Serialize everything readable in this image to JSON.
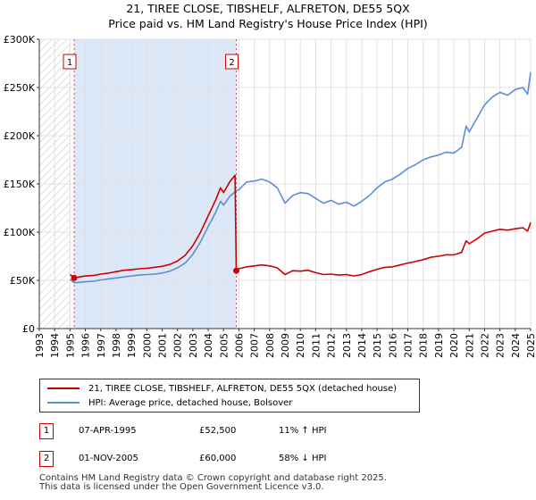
{
  "title_line1": "21, TIREE CLOSE, TIBSHELF, ALFRETON, DE55 5QX",
  "title_line2": "Price paid vs. HM Land Registry's House Price Index (HPI)",
  "chart_data": {
    "type": "line",
    "xlim": [
      1993,
      2025
    ],
    "ylim": [
      0,
      300000
    ],
    "x_ticks": [
      "1993",
      "1994",
      "1995",
      "1996",
      "1997",
      "1998",
      "1999",
      "2000",
      "2001",
      "2002",
      "2003",
      "2004",
      "2005",
      "2006",
      "2007",
      "2008",
      "2009",
      "2010",
      "2011",
      "2012",
      "2013",
      "2014",
      "2015",
      "2016",
      "2017",
      "2018",
      "2019",
      "2020",
      "2021",
      "2022",
      "2023",
      "2024",
      "2025"
    ],
    "y_ticks": [
      {
        "value": 0,
        "label": "£0"
      },
      {
        "value": 50000,
        "label": "£50K"
      },
      {
        "value": 100000,
        "label": "£100K"
      },
      {
        "value": 150000,
        "label": "£150K"
      },
      {
        "value": 200000,
        "label": "£200K"
      },
      {
        "value": 250000,
        "label": "£250K"
      },
      {
        "value": 300000,
        "label": "£300K"
      }
    ],
    "grid": true,
    "pre_data_hatch_until": 1995.0,
    "ownership_shading": [
      1995.27,
      2005.83
    ],
    "series": [
      {
        "name": "21, TIREE CLOSE, TIBSHELF, ALFRETON, DE55 5QX (detached house)",
        "color": "#cc0000",
        "points": [
          [
            1995.0,
            56000
          ],
          [
            1995.27,
            52500
          ],
          [
            1995.6,
            53500
          ],
          [
            1996.0,
            54500
          ],
          [
            1996.5,
            55000
          ],
          [
            1997.0,
            56500
          ],
          [
            1997.5,
            57500
          ],
          [
            1998.0,
            59000
          ],
          [
            1998.5,
            60500
          ],
          [
            1999.0,
            61000
          ],
          [
            1999.5,
            62000
          ],
          [
            2000.0,
            62500
          ],
          [
            2000.5,
            63500
          ],
          [
            2001.0,
            64500
          ],
          [
            2001.5,
            66500
          ],
          [
            2002.0,
            70000
          ],
          [
            2002.5,
            76000
          ],
          [
            2003.0,
            86000
          ],
          [
            2003.5,
            100000
          ],
          [
            2004.0,
            117000
          ],
          [
            2004.5,
            134000
          ],
          [
            2004.8,
            146000
          ],
          [
            2005.0,
            141000
          ],
          [
            2005.4,
            152000
          ],
          [
            2005.75,
            159000
          ],
          [
            2005.83,
            60000
          ],
          [
            2006.0,
            62000
          ],
          [
            2006.5,
            64000
          ],
          [
            2007.0,
            65000
          ],
          [
            2007.5,
            66000
          ],
          [
            2008.0,
            65000
          ],
          [
            2008.5,
            63000
          ],
          [
            2009.0,
            56000
          ],
          [
            2009.5,
            60000
          ],
          [
            2010.0,
            59500
          ],
          [
            2010.5,
            60500
          ],
          [
            2011.0,
            58000
          ],
          [
            2011.5,
            56000
          ],
          [
            2012.0,
            56500
          ],
          [
            2012.5,
            55500
          ],
          [
            2013.0,
            56000
          ],
          [
            2013.5,
            54500
          ],
          [
            2014.0,
            56000
          ],
          [
            2014.5,
            59000
          ],
          [
            2015.0,
            61500
          ],
          [
            2015.5,
            63500
          ],
          [
            2016.0,
            64000
          ],
          [
            2016.5,
            66000
          ],
          [
            2017.0,
            68000
          ],
          [
            2017.5,
            69500
          ],
          [
            2018.0,
            71500
          ],
          [
            2018.5,
            74000
          ],
          [
            2019.0,
            75000
          ],
          [
            2019.5,
            76500
          ],
          [
            2020.0,
            76500
          ],
          [
            2020.5,
            79000
          ],
          [
            2020.8,
            91000
          ],
          [
            2021.0,
            88000
          ],
          [
            2021.5,
            93000
          ],
          [
            2022.0,
            99000
          ],
          [
            2022.5,
            101000
          ],
          [
            2023.0,
            103000
          ],
          [
            2023.5,
            102000
          ],
          [
            2024.0,
            103500
          ],
          [
            2024.5,
            104500
          ],
          [
            2024.8,
            101000
          ],
          [
            2025.0,
            110000
          ]
        ]
      },
      {
        "name": "HPI: Average price, detached house, Bolsover",
        "color": "#5b8fd4",
        "points": [
          [
            1995.0,
            51000
          ],
          [
            1995.27,
            47500
          ],
          [
            1995.6,
            48000
          ],
          [
            1996.0,
            48500
          ],
          [
            1996.5,
            49000
          ],
          [
            1997.0,
            50500
          ],
          [
            1997.5,
            51500
          ],
          [
            1998.0,
            52500
          ],
          [
            1998.5,
            53500
          ],
          [
            1999.0,
            54500
          ],
          [
            1999.5,
            55500
          ],
          [
            2000.0,
            56000
          ],
          [
            2000.5,
            56500
          ],
          [
            2001.0,
            57500
          ],
          [
            2001.5,
            59500
          ],
          [
            2002.0,
            63000
          ],
          [
            2002.5,
            68000
          ],
          [
            2003.0,
            77000
          ],
          [
            2003.5,
            90000
          ],
          [
            2004.0,
            106000
          ],
          [
            2004.5,
            121000
          ],
          [
            2004.8,
            132000
          ],
          [
            2005.0,
            128000
          ],
          [
            2005.4,
            137000
          ],
          [
            2005.83,
            143000
          ],
          [
            2006.0,
            144000
          ],
          [
            2006.5,
            152000
          ],
          [
            2007.0,
            153000
          ],
          [
            2007.5,
            155000
          ],
          [
            2008.0,
            152000
          ],
          [
            2008.5,
            146000
          ],
          [
            2009.0,
            130000
          ],
          [
            2009.5,
            138000
          ],
          [
            2010.0,
            141000
          ],
          [
            2010.5,
            140000
          ],
          [
            2011.0,
            135000
          ],
          [
            2011.5,
            130000
          ],
          [
            2012.0,
            133000
          ],
          [
            2012.5,
            129000
          ],
          [
            2013.0,
            131000
          ],
          [
            2013.5,
            127000
          ],
          [
            2014.0,
            132000
          ],
          [
            2014.5,
            138000
          ],
          [
            2015.0,
            146000
          ],
          [
            2015.5,
            152000
          ],
          [
            2016.0,
            155000
          ],
          [
            2016.5,
            160000
          ],
          [
            2017.0,
            166000
          ],
          [
            2017.5,
            170000
          ],
          [
            2018.0,
            175000
          ],
          [
            2018.5,
            178000
          ],
          [
            2019.0,
            180000
          ],
          [
            2019.5,
            183000
          ],
          [
            2020.0,
            182000
          ],
          [
            2020.5,
            188000
          ],
          [
            2020.8,
            210000
          ],
          [
            2021.0,
            204000
          ],
          [
            2021.5,
            218000
          ],
          [
            2022.0,
            232000
          ],
          [
            2022.5,
            240000
          ],
          [
            2023.0,
            245000
          ],
          [
            2023.5,
            242000
          ],
          [
            2024.0,
            248000
          ],
          [
            2024.5,
            250000
          ],
          [
            2024.8,
            243000
          ],
          [
            2025.0,
            266000
          ]
        ]
      }
    ],
    "annotations": [
      {
        "label": "1",
        "x": 1995.27,
        "y": 52500
      },
      {
        "label": "2",
        "x": 2005.83,
        "y": 60000
      }
    ]
  },
  "legend": {
    "items": [
      {
        "label": "21, TIREE CLOSE, TIBSHELF, ALFRETON, DE55 5QX (detached house)",
        "color": "#cc0000"
      },
      {
        "label": "HPI: Average price, detached house, Bolsover",
        "color": "#5b8fd4"
      }
    ]
  },
  "events": [
    {
      "num": "1",
      "date": "07-APR-1995",
      "price": "£52,500",
      "hpi": "11% ↑ HPI"
    },
    {
      "num": "2",
      "date": "01-NOV-2005",
      "price": "£60,000",
      "hpi": "58% ↓ HPI"
    }
  ],
  "footer": {
    "line1": "Contains HM Land Registry data © Crown copyright and database right 2025.",
    "line2": "This data is licensed under the Open Government Licence v3.0."
  },
  "colors": {
    "grid": "#e0e0e0",
    "shade": "#dce8f8",
    "hatch": "#c0c0c0",
    "red": "#cc0000",
    "blue": "#5b8fd4"
  }
}
